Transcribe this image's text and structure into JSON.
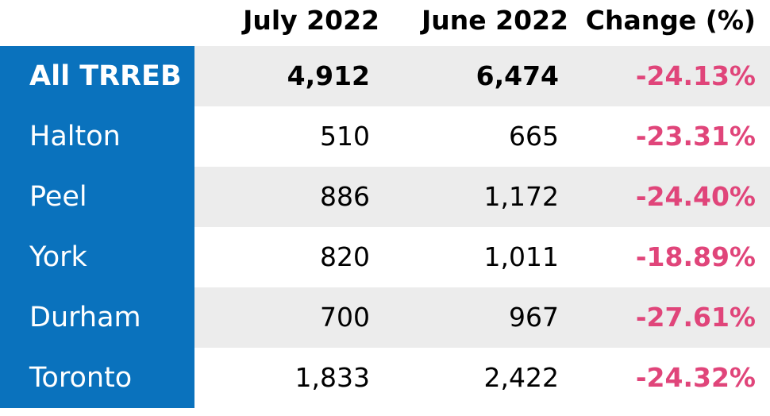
{
  "chart_data": {
    "type": "table",
    "columns": [
      "",
      "July 2022",
      "June 2022",
      "Change (%)"
    ],
    "rows": [
      {
        "region": "All TRREB",
        "july_2022": "4,912",
        "june_2022": "6,474",
        "change": "-24.13%"
      },
      {
        "region": "Halton",
        "july_2022": "510",
        "june_2022": "665",
        "change": "-23.31%"
      },
      {
        "region": "Peel",
        "july_2022": "886",
        "june_2022": "1,172",
        "change": "-24.40%"
      },
      {
        "region": "York",
        "july_2022": "820",
        "june_2022": "1,011",
        "change": "-18.89%"
      },
      {
        "region": "Durham",
        "july_2022": "700",
        "june_2022": "967",
        "change": "-27.61%"
      },
      {
        "region": "Toronto",
        "july_2022": "1,833",
        "june_2022": "2,422",
        "change": "-24.32%"
      }
    ]
  },
  "colors": {
    "region_column": "#0a72bd",
    "row_shading": "#ececec",
    "change_text": "#e0457a"
  }
}
